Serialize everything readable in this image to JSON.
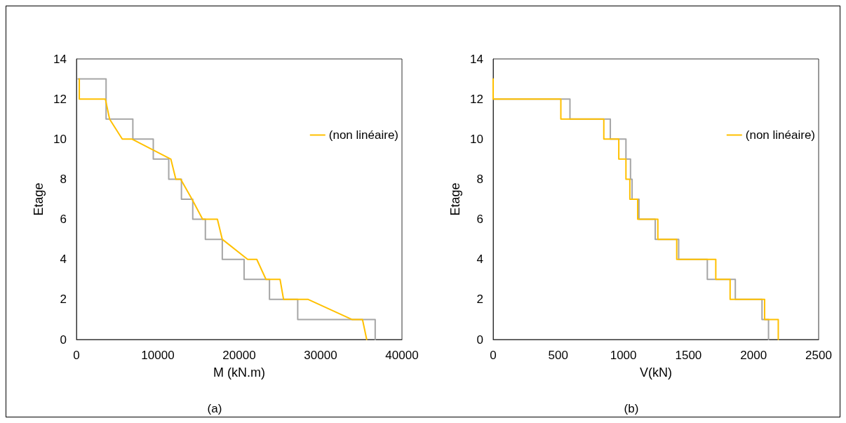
{
  "chart_data": [
    {
      "type": "line",
      "xlabel": "M (kN.m)",
      "ylabel": "Etage",
      "annotations": [
        "(a)"
      ],
      "xlim": [
        0,
        40000
      ],
      "xticks": [
        0,
        10000,
        20000,
        30000,
        40000
      ],
      "ylim": [
        0,
        14
      ],
      "yticks": [
        0,
        2,
        4,
        6,
        8,
        10,
        12,
        14
      ],
      "legend": "top right",
      "series": [
        {
          "color": "#a6a6a6",
          "x": [
            200,
            3640,
            3640,
            6930,
            6930,
            9440,
            9440,
            11340,
            11340,
            12900,
            12900,
            14290,
            14290,
            15840,
            15840,
            17920,
            17920,
            20600,
            20600,
            23720,
            23720,
            27190,
            27190,
            36710,
            36710
          ],
          "values": [
            13,
            13,
            11,
            11,
            10,
            10,
            9,
            9,
            8,
            8,
            7,
            7,
            6,
            6,
            5,
            5,
            4,
            4,
            3,
            3,
            2,
            2,
            1,
            1,
            0
          ]
        },
        {
          "name": "(non linéaire)",
          "color": "#ffc000",
          "x": [
            350,
            350,
            3550,
            4070,
            5630,
            6840,
            11600,
            12210,
            12810,
            14200,
            15500,
            17320,
            17920,
            21040,
            22160,
            23290,
            25020,
            25450,
            28480,
            33850,
            35150,
            35670
          ],
          "values": [
            13,
            12,
            12,
            11,
            10,
            10,
            9,
            8,
            8,
            7,
            6,
            6,
            5,
            4,
            4,
            3,
            3,
            2,
            2,
            1,
            1,
            0
          ]
        }
      ]
    },
    {
      "type": "line",
      "xlabel": "V(kN)",
      "ylabel": "Etage",
      "annotations": [
        "(b)"
      ],
      "xlim": [
        0,
        2500
      ],
      "xticks": [
        0,
        500,
        1000,
        1500,
        2000,
        2500
      ],
      "ylim": [
        0,
        14
      ],
      "yticks": [
        0,
        2,
        4,
        6,
        8,
        10,
        12,
        14
      ],
      "legend": "top right",
      "series": [
        {
          "color": "#a6a6a6",
          "x": [
            0,
            590,
            590,
            900,
            900,
            1020,
            1020,
            1055,
            1055,
            1067,
            1067,
            1120,
            1120,
            1245,
            1245,
            1425,
            1425,
            1645,
            1645,
            1860,
            1860,
            2065,
            2065,
            2115,
            2115
          ],
          "values": [
            12,
            12,
            11,
            11,
            10,
            10,
            9,
            9,
            8,
            8,
            7,
            7,
            6,
            6,
            5,
            5,
            4,
            4,
            3,
            3,
            2,
            2,
            1,
            1,
            0
          ]
        },
        {
          "name": "(non linéaire)",
          "color": "#ffc000",
          "x": [
            0,
            0,
            520,
            520,
            850,
            850,
            965,
            965,
            1020,
            1020,
            1050,
            1050,
            1110,
            1110,
            1265,
            1265,
            1410,
            1410,
            1710,
            1710,
            1820,
            1820,
            2085,
            2085,
            2190,
            2190
          ],
          "values": [
            13,
            12,
            12,
            11,
            11,
            10,
            10,
            9,
            9,
            8,
            8,
            7,
            7,
            6,
            6,
            5,
            5,
            4,
            4,
            3,
            3,
            2,
            2,
            1,
            1,
            0
          ]
        }
      ]
    }
  ]
}
